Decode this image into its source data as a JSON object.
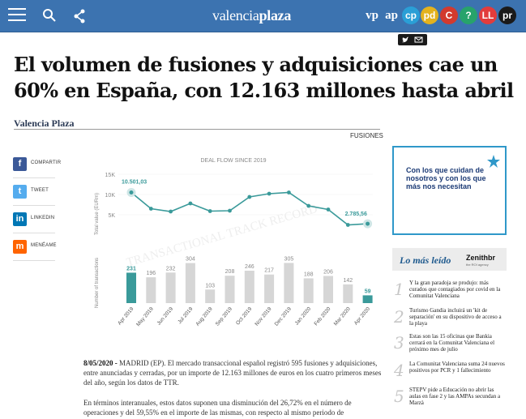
{
  "header": {
    "logo_regular": "valencia",
    "logo_bold": "plaza",
    "brands": [
      {
        "label": "vp",
        "color": "#3c73b0"
      },
      {
        "label": "ap",
        "color": "#3c73b0"
      },
      {
        "label": "cp",
        "color": "#2a9fd6"
      },
      {
        "label": "pd",
        "color": "#e3b21d"
      },
      {
        "label": "C",
        "color": "#d23a2e"
      },
      {
        "label": "?",
        "color": "#27a36b"
      },
      {
        "label": "LL",
        "color": "#e23c3c"
      },
      {
        "label": "pr",
        "color": "#1a1a1a"
      }
    ]
  },
  "article": {
    "headline": "El volumen de fusiones y adquisiciones cae un 60% en España, con 12.163 millones hasta abril",
    "author": "Valencia Plaza",
    "figure_caption": "FUSIONES",
    "dateline": "8/05/2020 -",
    "para1_rest": " MADRID (EP). El mercado transaccional español registró 595 fusiones y adquisiciones, entre anunciadas y cerradas, por un importe de 12.163 millones de euros en los cuatro primeros meses del año, según los datos de TTR.",
    "para2": "En términos interanuales, estos datos suponen una disminución del 26,72% en el número de operaciones y del 59,55% en el importe de las mismas, con respecto al mismo periodo de"
  },
  "social": [
    {
      "label": "COMPARTIR",
      "icon": "facebook-icon",
      "glyph": "f",
      "color": "#3b5998"
    },
    {
      "label": "TWEET",
      "icon": "twitter-icon",
      "glyph": "t",
      "color": "#55acee"
    },
    {
      "label": "LINKEDIN",
      "icon": "linkedin-icon",
      "glyph": "in",
      "color": "#0077b5"
    },
    {
      "label": "MENÉAME",
      "icon": "meneame-icon",
      "glyph": "m",
      "color": "#ff6400"
    }
  ],
  "ad": {
    "text": "Con los que cuidan de nosotros y con los que más nos necesitan"
  },
  "most_read": {
    "title": "Lo más leído",
    "sponsor": "Zenithbr",
    "sponsor_sub": "the ROI agency",
    "items": [
      {
        "num": "1",
        "text": "Y la gran paradoja se produjo: más curados que contagiados por covid en la Comunitat Valenciana"
      },
      {
        "num": "2",
        "text": "Turismo Gandia incluirá un 'kit de separación' en su dispositivo de acceso a la playa"
      },
      {
        "num": "3",
        "text": "Estas son las 15 oficinas que Bankia cerrará en la Comunitat Valenciana el próximo mes de julio"
      },
      {
        "num": "4",
        "text": "La Comunitat Valenciana suma 24 nuevos positivos por PCR y 1 fallecimiento"
      },
      {
        "num": "5",
        "text": "STEPV pide a Educación no abrir las aulas en fase 2 y las AMPAs secundan a Marzà"
      }
    ]
  },
  "chart_data": {
    "type": "bar",
    "title": "DEAL FLOW SINCE 2019",
    "watermark": "TRANSACTIONAL TRACK RECORD",
    "categories": [
      "Apr 2019",
      "May 2019",
      "Jun 2019",
      "Jul 2019",
      "Aug 2019",
      "Sep 2019",
      "Oct 2019",
      "Nov 2019",
      "Dec 2019",
      "Jan 2020",
      "Feb 2020",
      "Mar 2020",
      "Apr 2020"
    ],
    "series": [
      {
        "name": "Number of transactions",
        "values": [
          231,
          196,
          232,
          304,
          103,
          208,
          246,
          217,
          305,
          188,
          206,
          142,
          59
        ]
      },
      {
        "name": "Total value (EURm)",
        "values": [
          10501.03,
          6500,
          5800,
          7800,
          5900,
          6000,
          9400,
          10200,
          10500,
          7200,
          6300,
          2500,
          2785.56
        ]
      }
    ],
    "value_labels": {
      "first": "10.501,03",
      "last": "2.785,56"
    },
    "ylabel_top": "Total value (EURm)",
    "ylabel_bottom": "Number of transactions",
    "ylim_value": [
      0,
      15000
    ],
    "yticks_value": [
      "15K",
      "10K",
      "5K"
    ],
    "colors": {
      "highlight": "#3a9a9a",
      "bar": "#d6d6d6",
      "line": "#3a9a9a"
    }
  }
}
